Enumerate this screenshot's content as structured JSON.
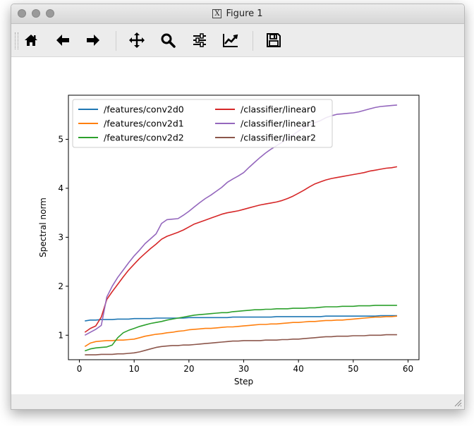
{
  "window": {
    "title": "Figure 1",
    "title_icon": "X"
  },
  "toolbar": {
    "buttons": [
      {
        "name": "home-button",
        "icon": "home-icon"
      },
      {
        "name": "back-button",
        "icon": "arrow-left-icon"
      },
      {
        "name": "forward-button",
        "icon": "arrow-right-icon"
      },
      {
        "name": "pan-button",
        "icon": "move-icon"
      },
      {
        "name": "zoom-button",
        "icon": "magnifier-icon"
      },
      {
        "name": "configure-subplots-button",
        "icon": "sliders-icon"
      },
      {
        "name": "edit-axis-button",
        "icon": "line-chart-icon"
      },
      {
        "name": "save-button",
        "icon": "floppy-disk-icon"
      }
    ]
  },
  "chart_data": {
    "type": "line",
    "title": "",
    "xlabel": "Step",
    "ylabel": "Spectral norm",
    "xlim": [
      -2,
      62
    ],
    "ylim": [
      0.5,
      5.9
    ],
    "xticks": [
      0,
      10,
      20,
      30,
      40,
      50,
      60
    ],
    "yticks": [
      1,
      2,
      3,
      4,
      5
    ],
    "legend_position": "upper-left",
    "legend_columns": 2,
    "grid": false,
    "x": [
      1,
      2,
      3,
      4,
      5,
      6,
      7,
      8,
      9,
      10,
      11,
      12,
      13,
      14,
      15,
      16,
      17,
      18,
      19,
      20,
      21,
      22,
      23,
      24,
      25,
      26,
      27,
      28,
      29,
      30,
      31,
      32,
      33,
      34,
      35,
      36,
      37,
      38,
      39,
      40,
      41,
      42,
      43,
      44,
      45,
      46,
      47,
      48,
      49,
      50,
      51,
      52,
      53,
      54,
      55,
      56,
      57,
      58
    ],
    "series": [
      {
        "name": "/features/conv2d0",
        "color": "#1f77b4",
        "values": [
          1.29,
          1.31,
          1.31,
          1.32,
          1.32,
          1.32,
          1.33,
          1.33,
          1.33,
          1.34,
          1.34,
          1.34,
          1.34,
          1.35,
          1.35,
          1.35,
          1.35,
          1.35,
          1.35,
          1.36,
          1.36,
          1.36,
          1.36,
          1.36,
          1.36,
          1.36,
          1.36,
          1.37,
          1.37,
          1.37,
          1.37,
          1.37,
          1.37,
          1.37,
          1.37,
          1.38,
          1.38,
          1.38,
          1.38,
          1.38,
          1.38,
          1.38,
          1.38,
          1.38,
          1.39,
          1.39,
          1.39,
          1.39,
          1.39,
          1.39,
          1.39,
          1.39,
          1.39,
          1.39,
          1.4,
          1.4,
          1.4,
          1.4
        ]
      },
      {
        "name": "/features/conv2d1",
        "color": "#ff7f0e",
        "values": [
          0.77,
          0.84,
          0.87,
          0.88,
          0.89,
          0.89,
          0.9,
          0.9,
          0.91,
          0.92,
          0.95,
          0.98,
          1.0,
          1.02,
          1.03,
          1.05,
          1.06,
          1.08,
          1.09,
          1.11,
          1.12,
          1.13,
          1.14,
          1.14,
          1.15,
          1.16,
          1.17,
          1.17,
          1.18,
          1.19,
          1.2,
          1.21,
          1.22,
          1.22,
          1.23,
          1.23,
          1.24,
          1.25,
          1.26,
          1.26,
          1.27,
          1.28,
          1.28,
          1.29,
          1.3,
          1.3,
          1.31,
          1.31,
          1.32,
          1.33,
          1.34,
          1.35,
          1.36,
          1.37,
          1.37,
          1.38,
          1.38,
          1.39
        ]
      },
      {
        "name": "/features/conv2d2",
        "color": "#2ca02c",
        "values": [
          0.68,
          0.72,
          0.74,
          0.75,
          0.76,
          0.8,
          0.95,
          1.05,
          1.1,
          1.14,
          1.18,
          1.21,
          1.24,
          1.26,
          1.28,
          1.31,
          1.33,
          1.35,
          1.37,
          1.39,
          1.41,
          1.42,
          1.43,
          1.44,
          1.45,
          1.46,
          1.46,
          1.48,
          1.49,
          1.5,
          1.51,
          1.52,
          1.52,
          1.53,
          1.53,
          1.54,
          1.54,
          1.54,
          1.55,
          1.55,
          1.55,
          1.56,
          1.56,
          1.57,
          1.58,
          1.58,
          1.58,
          1.59,
          1.59,
          1.59,
          1.6,
          1.6,
          1.6,
          1.61,
          1.61,
          1.61,
          1.61,
          1.61
        ]
      },
      {
        "name": "/classifier/linear0",
        "color": "#d62728",
        "values": [
          1.06,
          1.14,
          1.19,
          1.37,
          1.73,
          1.89,
          2.04,
          2.19,
          2.33,
          2.45,
          2.57,
          2.67,
          2.77,
          2.86,
          2.96,
          3.02,
          3.06,
          3.1,
          3.15,
          3.21,
          3.27,
          3.31,
          3.35,
          3.39,
          3.43,
          3.47,
          3.5,
          3.52,
          3.54,
          3.57,
          3.6,
          3.63,
          3.66,
          3.68,
          3.7,
          3.72,
          3.75,
          3.79,
          3.84,
          3.9,
          3.96,
          4.03,
          4.09,
          4.13,
          4.17,
          4.2,
          4.22,
          4.24,
          4.26,
          4.28,
          4.3,
          4.32,
          4.35,
          4.37,
          4.39,
          4.41,
          4.42,
          4.44
        ]
      },
      {
        "name": "/classifier/linear1",
        "color": "#9467bd",
        "values": [
          1.0,
          1.06,
          1.12,
          1.2,
          1.78,
          2.0,
          2.18,
          2.33,
          2.48,
          2.62,
          2.74,
          2.87,
          2.97,
          3.07,
          3.28,
          3.36,
          3.37,
          3.38,
          3.45,
          3.53,
          3.62,
          3.71,
          3.79,
          3.86,
          3.94,
          4.02,
          4.12,
          4.19,
          4.25,
          4.32,
          4.43,
          4.53,
          4.63,
          4.72,
          4.8,
          4.87,
          4.94,
          5.01,
          5.09,
          5.17,
          5.24,
          5.29,
          5.34,
          5.38,
          5.44,
          5.48,
          5.51,
          5.52,
          5.53,
          5.54,
          5.56,
          5.59,
          5.62,
          5.65,
          5.67,
          5.68,
          5.69,
          5.7
        ]
      },
      {
        "name": "/classifier/linear2",
        "color": "#8c564b",
        "values": [
          0.6,
          0.6,
          0.6,
          0.61,
          0.61,
          0.61,
          0.62,
          0.62,
          0.63,
          0.64,
          0.66,
          0.69,
          0.72,
          0.75,
          0.77,
          0.78,
          0.79,
          0.79,
          0.8,
          0.8,
          0.81,
          0.82,
          0.83,
          0.84,
          0.85,
          0.86,
          0.87,
          0.88,
          0.88,
          0.89,
          0.89,
          0.89,
          0.89,
          0.9,
          0.9,
          0.9,
          0.91,
          0.91,
          0.92,
          0.92,
          0.93,
          0.94,
          0.95,
          0.96,
          0.97,
          0.97,
          0.98,
          0.98,
          0.98,
          0.99,
          0.99,
          0.99,
          1.0,
          1.0,
          1.0,
          1.01,
          1.01,
          1.01
        ]
      }
    ]
  }
}
